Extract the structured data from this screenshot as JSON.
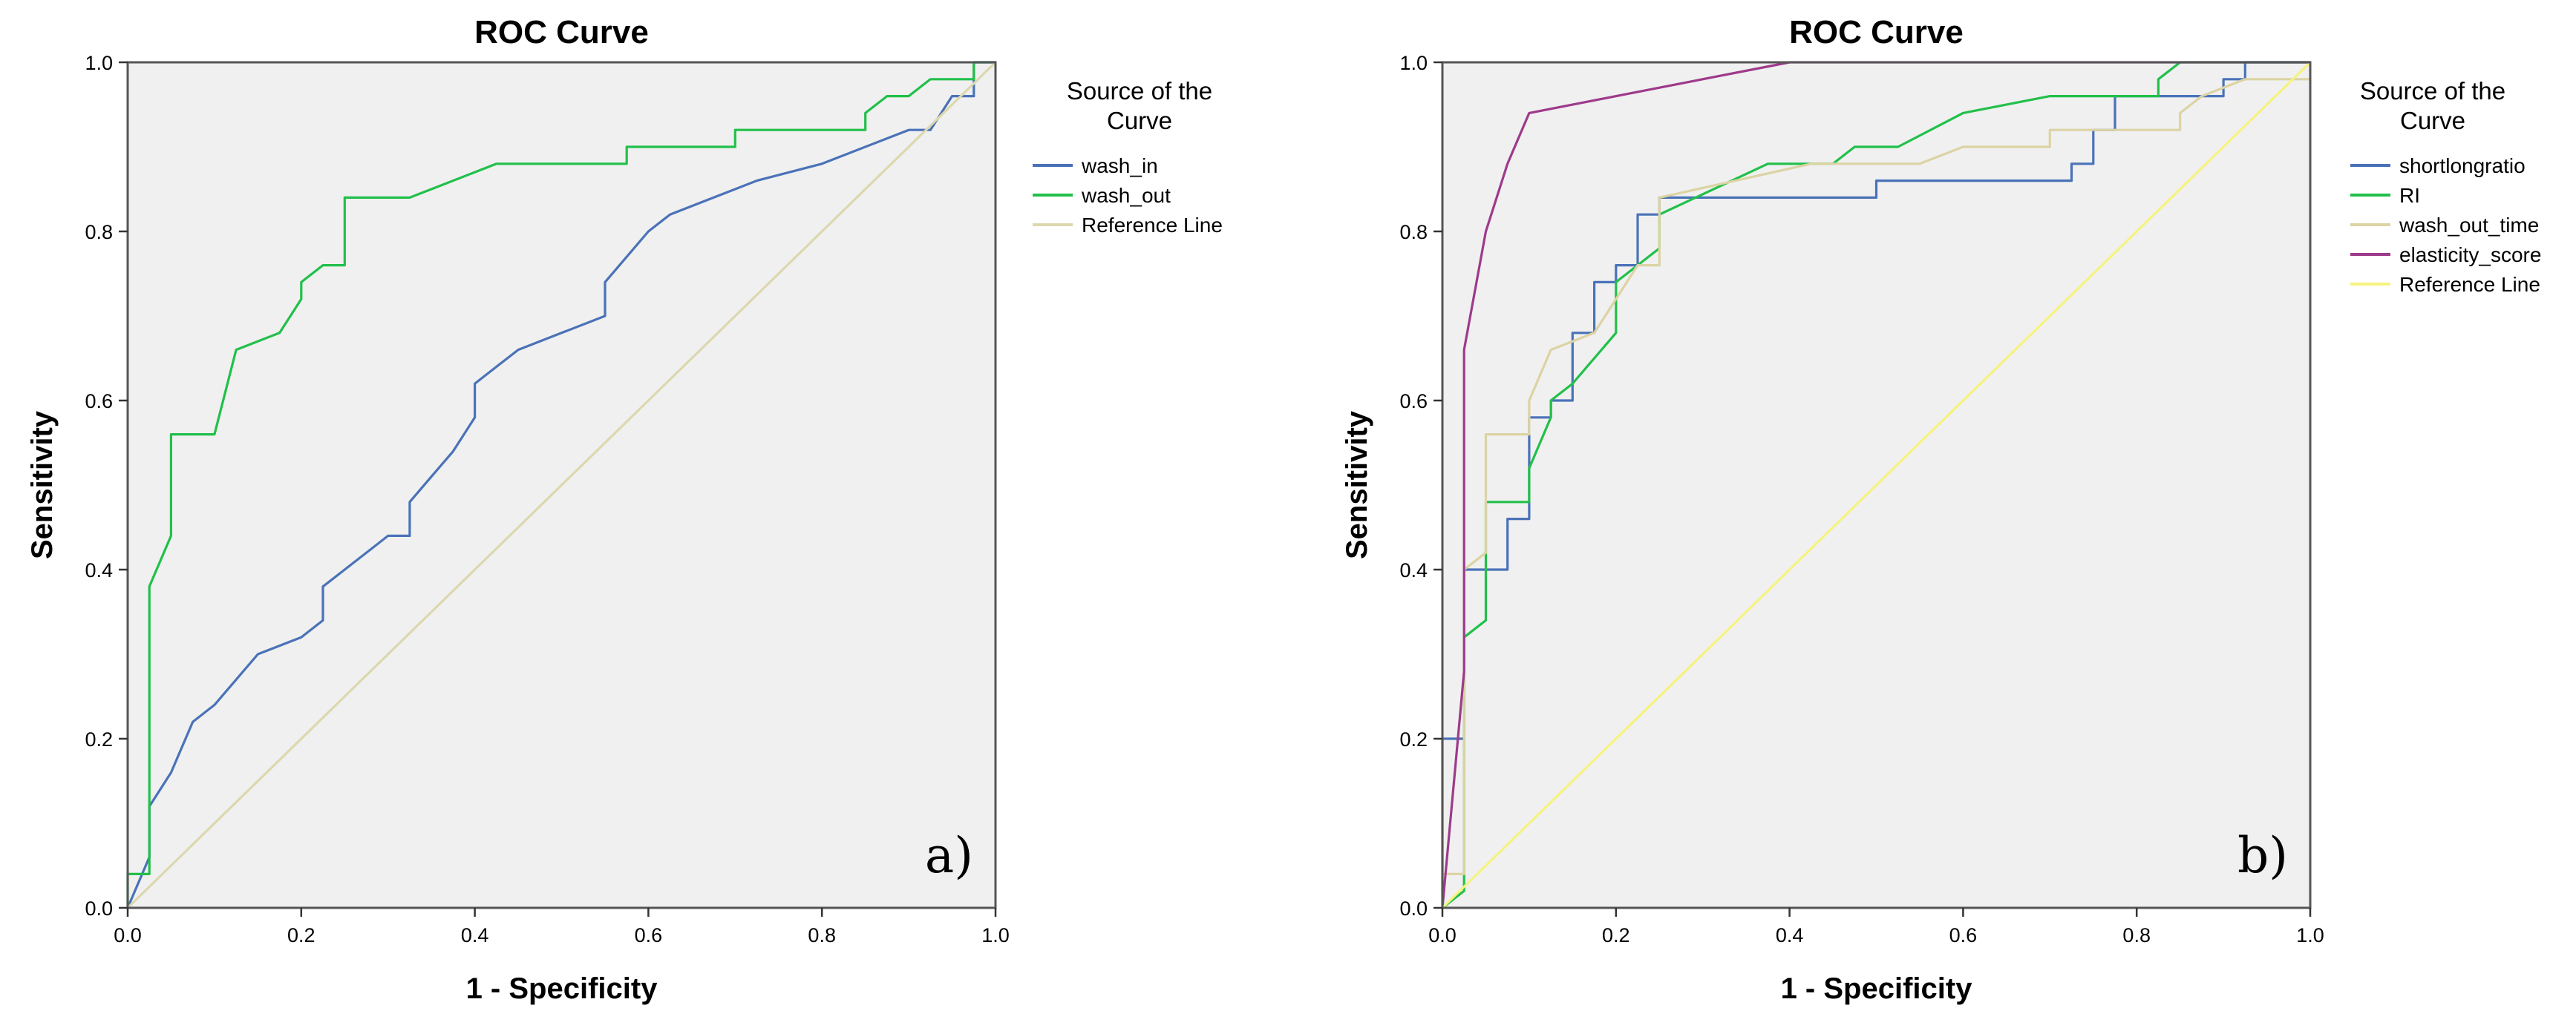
{
  "chart_data": [
    {
      "type": "line",
      "title": "ROC Curve",
      "xlabel": "1 - Specificity",
      "ylabel": "Sensitivity",
      "xlim": [
        0,
        1
      ],
      "ylim": [
        0,
        1
      ],
      "x_ticks": [
        "0.0",
        "0.2",
        "0.4",
        "0.6",
        "0.8",
        "1.0"
      ],
      "y_ticks": [
        "0.0",
        "0.2",
        "0.4",
        "0.6",
        "0.8",
        "1.0"
      ],
      "panel_label": "a)",
      "legend": {
        "title": "Source of the Curve",
        "position": "right"
      },
      "series": [
        {
          "name": "wash_in",
          "color": "#4a72b8",
          "points": [
            [
              0,
              0
            ],
            [
              0.025,
              0.06
            ],
            [
              0.025,
              0.12
            ],
            [
              0.05,
              0.16
            ],
            [
              0.075,
              0.22
            ],
            [
              0.1,
              0.24
            ],
            [
              0.15,
              0.3
            ],
            [
              0.2,
              0.32
            ],
            [
              0.225,
              0.34
            ],
            [
              0.225,
              0.38
            ],
            [
              0.25,
              0.4
            ],
            [
              0.3,
              0.44
            ],
            [
              0.325,
              0.44
            ],
            [
              0.325,
              0.48
            ],
            [
              0.35,
              0.51
            ],
            [
              0.375,
              0.54
            ],
            [
              0.4,
              0.58
            ],
            [
              0.4,
              0.62
            ],
            [
              0.425,
              0.64
            ],
            [
              0.45,
              0.66
            ],
            [
              0.5,
              0.68
            ],
            [
              0.55,
              0.7
            ],
            [
              0.55,
              0.74
            ],
            [
              0.6,
              0.8
            ],
            [
              0.625,
              0.82
            ],
            [
              0.675,
              0.84
            ],
            [
              0.725,
              0.86
            ],
            [
              0.8,
              0.88
            ],
            [
              0.9,
              0.92
            ],
            [
              0.925,
              0.92
            ],
            [
              0.95,
              0.96
            ],
            [
              0.975,
              0.96
            ],
            [
              0.975,
              1.0
            ],
            [
              1.0,
              1.0
            ]
          ]
        },
        {
          "name": "wash_out",
          "color": "#21c04a",
          "points": [
            [
              0,
              0
            ],
            [
              0,
              0.04
            ],
            [
              0.025,
              0.04
            ],
            [
              0.025,
              0.38
            ],
            [
              0.05,
              0.44
            ],
            [
              0.05,
              0.56
            ],
            [
              0.1,
              0.56
            ],
            [
              0.125,
              0.66
            ],
            [
              0.175,
              0.68
            ],
            [
              0.2,
              0.72
            ],
            [
              0.2,
              0.74
            ],
            [
              0.225,
              0.76
            ],
            [
              0.25,
              0.76
            ],
            [
              0.25,
              0.84
            ],
            [
              0.325,
              0.84
            ],
            [
              0.425,
              0.88
            ],
            [
              0.575,
              0.88
            ],
            [
              0.575,
              0.9
            ],
            [
              0.7,
              0.9
            ],
            [
              0.7,
              0.92
            ],
            [
              0.85,
              0.92
            ],
            [
              0.85,
              0.94
            ],
            [
              0.875,
              0.96
            ],
            [
              0.9,
              0.96
            ],
            [
              0.925,
              0.98
            ],
            [
              0.975,
              0.98
            ],
            [
              0.975,
              1.0
            ],
            [
              1.0,
              1.0
            ]
          ]
        },
        {
          "name": "Reference Line",
          "color": "#dcd8ae",
          "points": [
            [
              0,
              0
            ],
            [
              1,
              1
            ]
          ]
        }
      ]
    },
    {
      "type": "line",
      "title": "ROC Curve",
      "xlabel": "1 - Specificity",
      "ylabel": "Sensitivity",
      "xlim": [
        0,
        1
      ],
      "ylim": [
        0,
        1
      ],
      "x_ticks": [
        "0.0",
        "0.2",
        "0.4",
        "0.6",
        "0.8",
        "1.0"
      ],
      "y_ticks": [
        "0.0",
        "0.2",
        "0.4",
        "0.6",
        "0.8",
        "1.0"
      ],
      "panel_label": "b)",
      "legend": {
        "title": "Source of the Curve",
        "position": "right"
      },
      "series": [
        {
          "name": "shortlongratio",
          "color": "#4a72b8",
          "points": [
            [
              0,
              0
            ],
            [
              0,
              0.2
            ],
            [
              0.025,
              0.2
            ],
            [
              0.025,
              0.4
            ],
            [
              0.075,
              0.4
            ],
            [
              0.075,
              0.46
            ],
            [
              0.1,
              0.46
            ],
            [
              0.1,
              0.58
            ],
            [
              0.125,
              0.58
            ],
            [
              0.125,
              0.6
            ],
            [
              0.15,
              0.6
            ],
            [
              0.15,
              0.68
            ],
            [
              0.175,
              0.68
            ],
            [
              0.175,
              0.74
            ],
            [
              0.2,
              0.74
            ],
            [
              0.2,
              0.76
            ],
            [
              0.225,
              0.76
            ],
            [
              0.225,
              0.82
            ],
            [
              0.25,
              0.82
            ],
            [
              0.25,
              0.84
            ],
            [
              0.5,
              0.84
            ],
            [
              0.5,
              0.86
            ],
            [
              0.725,
              0.86
            ],
            [
              0.725,
              0.88
            ],
            [
              0.75,
              0.88
            ],
            [
              0.75,
              0.92
            ],
            [
              0.775,
              0.92
            ],
            [
              0.775,
              0.96
            ],
            [
              0.9,
              0.96
            ],
            [
              0.9,
              0.98
            ],
            [
              0.925,
              0.98
            ],
            [
              0.925,
              1.0
            ],
            [
              1.0,
              1.0
            ]
          ]
        },
        {
          "name": "RI",
          "color": "#21c04a",
          "points": [
            [
              0,
              0
            ],
            [
              0.025,
              0.02
            ],
            [
              0.025,
              0.32
            ],
            [
              0.05,
              0.34
            ],
            [
              0.05,
              0.48
            ],
            [
              0.1,
              0.48
            ],
            [
              0.1,
              0.52
            ],
            [
              0.125,
              0.58
            ],
            [
              0.125,
              0.6
            ],
            [
              0.15,
              0.62
            ],
            [
              0.2,
              0.68
            ],
            [
              0.2,
              0.74
            ],
            [
              0.25,
              0.78
            ],
            [
              0.25,
              0.82
            ],
            [
              0.375,
              0.88
            ],
            [
              0.45,
              0.88
            ],
            [
              0.475,
              0.9
            ],
            [
              0.525,
              0.9
            ],
            [
              0.6,
              0.94
            ],
            [
              0.7,
              0.96
            ],
            [
              0.825,
              0.96
            ],
            [
              0.825,
              0.98
            ],
            [
              0.85,
              1.0
            ],
            [
              1.0,
              1.0
            ]
          ]
        },
        {
          "name": "wash_out_time",
          "color": "#dcd3a4",
          "points": [
            [
              0,
              0
            ],
            [
              0,
              0.04
            ],
            [
              0.025,
              0.04
            ],
            [
              0.025,
              0.4
            ],
            [
              0.05,
              0.42
            ],
            [
              0.05,
              0.56
            ],
            [
              0.1,
              0.56
            ],
            [
              0.1,
              0.6
            ],
            [
              0.125,
              0.66
            ],
            [
              0.175,
              0.68
            ],
            [
              0.2,
              0.72
            ],
            [
              0.225,
              0.76
            ],
            [
              0.25,
              0.76
            ],
            [
              0.25,
              0.84
            ],
            [
              0.425,
              0.88
            ],
            [
              0.55,
              0.88
            ],
            [
              0.6,
              0.9
            ],
            [
              0.7,
              0.9
            ],
            [
              0.7,
              0.92
            ],
            [
              0.85,
              0.92
            ],
            [
              0.85,
              0.94
            ],
            [
              0.875,
              0.96
            ],
            [
              0.925,
              0.98
            ],
            [
              1.0,
              0.98
            ]
          ]
        },
        {
          "name": "elasticity_score",
          "color": "#9e3a8b",
          "points": [
            [
              0,
              0
            ],
            [
              0.025,
              0.28
            ],
            [
              0.025,
              0.66
            ],
            [
              0.05,
              0.8
            ],
            [
              0.075,
              0.88
            ],
            [
              0.1,
              0.94
            ],
            [
              0.4,
              1.0
            ],
            [
              1.0,
              1.0
            ]
          ]
        },
        {
          "name": "Reference Line",
          "color": "#f6f37e",
          "points": [
            [
              0,
              0
            ],
            [
              1,
              1
            ]
          ]
        }
      ]
    }
  ]
}
